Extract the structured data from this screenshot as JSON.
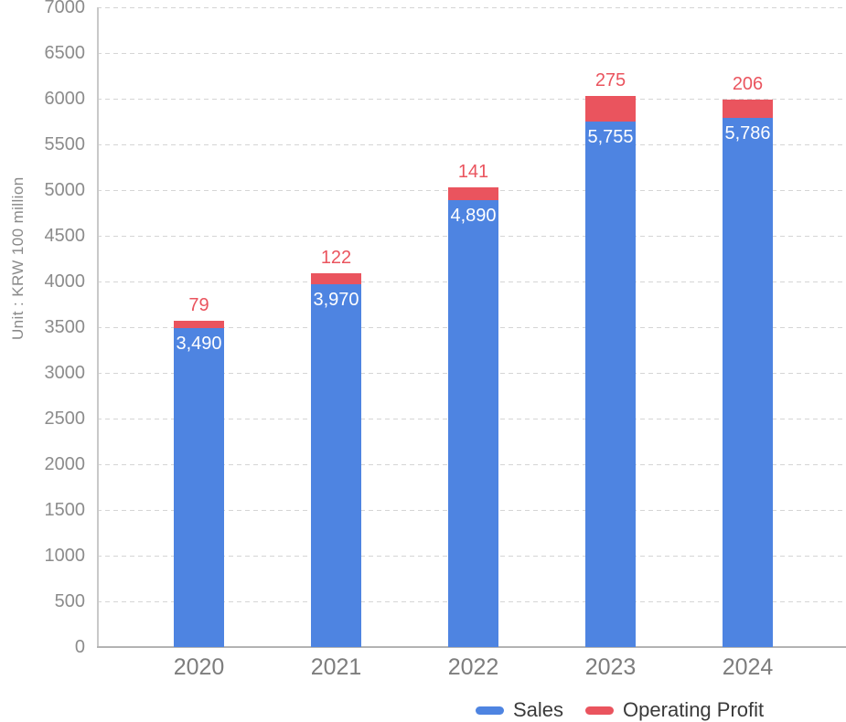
{
  "unit_label": "Unit : KRW 100 million",
  "colors": {
    "sales": "#4E84E1",
    "profit": "#EA545E",
    "grid": "#D5D5D5",
    "axis_y": "#C9C9C9",
    "axis_x": "#B3B3B3",
    "tick_text": "#8C8C8C",
    "xlabel_text": "#7D7D7D",
    "legend_text": "#3A3A3A",
    "bar_value_text": "#FFFFFF"
  },
  "legend": {
    "items": [
      {
        "label": "Sales",
        "color_key": "sales"
      },
      {
        "label": "Operating Profit",
        "color_key": "profit"
      }
    ]
  },
  "chart_data": {
    "type": "bar",
    "stacked": true,
    "title": "",
    "xlabel": "",
    "ylabel": "Unit : KRW 100 million",
    "categories": [
      "2020",
      "2021",
      "2022",
      "2023",
      "2024"
    ],
    "series": [
      {
        "name": "Sales",
        "color_key": "sales",
        "values": [
          3490,
          3970,
          4890,
          5755,
          5786
        ]
      },
      {
        "name": "Operating Profit",
        "color_key": "profit",
        "values": [
          79,
          122,
          141,
          275,
          206
        ]
      }
    ],
    "value_labels": {
      "sales": [
        "3,490",
        "3,970",
        "4,890",
        "5,755",
        "5,786"
      ],
      "profit": [
        "79",
        "122",
        "141",
        "275",
        "206"
      ]
    },
    "ylim": [
      0,
      7000
    ],
    "ytick_step": 500,
    "grid": true,
    "legend_position": "bottom-right"
  }
}
